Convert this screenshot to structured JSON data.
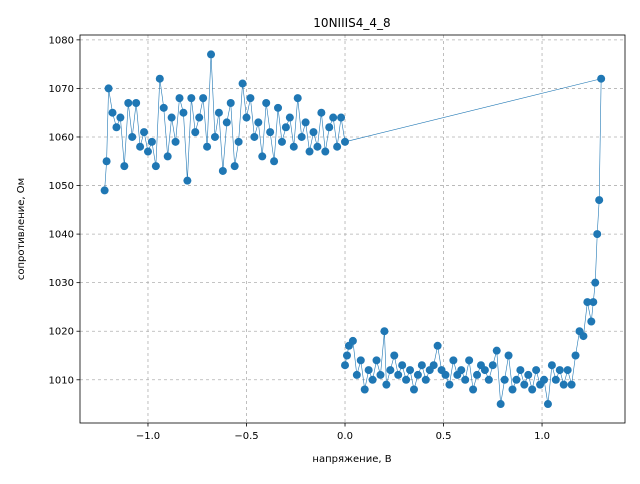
{
  "chart_data": {
    "type": "line",
    "title": "10NIIIS4_4_8",
    "x_label": "напряжение, В",
    "y_label": "сопротивление, Ом",
    "grid": true,
    "x": [
      -1.22,
      -1.21,
      -1.2,
      -1.18,
      -1.16,
      -1.14,
      -1.12,
      -1.1,
      -1.08,
      -1.06,
      -1.04,
      -1.02,
      -1.0,
      -0.98,
      -0.96,
      -0.94,
      -0.92,
      -0.9,
      -0.88,
      -0.86,
      -0.84,
      -0.82,
      -0.8,
      -0.78,
      -0.76,
      -0.74,
      -0.72,
      -0.7,
      -0.68,
      -0.66,
      -0.64,
      -0.62,
      -0.6,
      -0.58,
      -0.56,
      -0.54,
      -0.52,
      -0.5,
      -0.48,
      -0.46,
      -0.44,
      -0.42,
      -0.4,
      -0.38,
      -0.36,
      -0.34,
      -0.32,
      -0.3,
      -0.28,
      -0.26,
      -0.24,
      -0.22,
      -0.2,
      -0.18,
      -0.16,
      -0.14,
      -0.12,
      -0.1,
      -0.08,
      -0.06,
      -0.04,
      -0.02,
      0.0,
      1.3,
      1.29,
      1.28,
      1.27,
      1.26,
      1.25,
      1.23,
      1.21,
      1.19,
      1.17,
      1.15,
      1.13,
      1.11,
      1.09,
      1.07,
      1.05,
      1.03,
      1.01,
      0.99,
      0.97,
      0.95,
      0.93,
      0.91,
      0.89,
      0.87,
      0.85,
      0.83,
      0.81,
      0.79,
      0.77,
      0.75,
      0.73,
      0.71,
      0.69,
      0.67,
      0.65,
      0.63,
      0.61,
      0.59,
      0.57,
      0.55,
      0.53,
      0.51,
      0.49,
      0.47,
      0.45,
      0.43,
      0.41,
      0.39,
      0.37,
      0.35,
      0.33,
      0.31,
      0.29,
      0.27,
      0.25,
      0.23,
      0.21,
      0.2,
      0.18,
      0.16,
      0.14,
      0.12,
      0.1,
      0.08,
      0.06,
      0.04,
      0.02,
      0.01,
      0.0
    ],
    "series": [
      {
        "color": "#1f77b4",
        "values": [
          1049,
          1055,
          1070,
          1065,
          1062,
          1064,
          1054,
          1067,
          1060,
          1067,
          1058,
          1061,
          1057,
          1059,
          1054,
          1072,
          1066,
          1056,
          1064,
          1059,
          1068,
          1065,
          1051,
          1068,
          1061,
          1064,
          1068,
          1058,
          1077,
          1060,
          1065,
          1053,
          1063,
          1067,
          1054,
          1059,
          1071,
          1064,
          1068,
          1060,
          1063,
          1056,
          1067,
          1061,
          1055,
          1066,
          1059,
          1062,
          1064,
          1058,
          1068,
          1060,
          1063,
          1057,
          1061,
          1058,
          1065,
          1057,
          1062,
          1064,
          1058,
          1064,
          1059,
          1072,
          1047,
          1040,
          1030,
          1026,
          1022,
          1026,
          1019,
          1020,
          1015,
          1009,
          1012,
          1009,
          1012,
          1010,
          1013,
          1005,
          1010,
          1009,
          1012,
          1008,
          1011,
          1009,
          1012,
          1010,
          1008,
          1015,
          1010,
          1005,
          1016,
          1013,
          1010,
          1012,
          1013,
          1011,
          1008,
          1014,
          1010,
          1012,
          1011,
          1014,
          1009,
          1011,
          1012,
          1017,
          1013,
          1012,
          1010,
          1013,
          1011,
          1008,
          1012,
          1010,
          1013,
          1011,
          1015,
          1012,
          1009,
          1020,
          1011,
          1014,
          1010,
          1012,
          1008,
          1014,
          1011,
          1018,
          1017,
          1015,
          1013
        ]
      }
    ],
    "xlim": [
      -1.345,
      1.421
    ],
    "ylim": [
      1001.1,
      1081.0
    ],
    "xticks": [
      {
        "value": -1.0,
        "label": "−1.0"
      },
      {
        "value": -0.5,
        "label": "−0.5"
      },
      {
        "value": 0.0,
        "label": "0.0"
      },
      0.5,
      {
        "value": 1.0,
        "label": "1.0"
      }
    ],
    "yticks": [
      1010,
      1020,
      1030,
      1040,
      1050,
      1060,
      1070,
      1080
    ]
  }
}
